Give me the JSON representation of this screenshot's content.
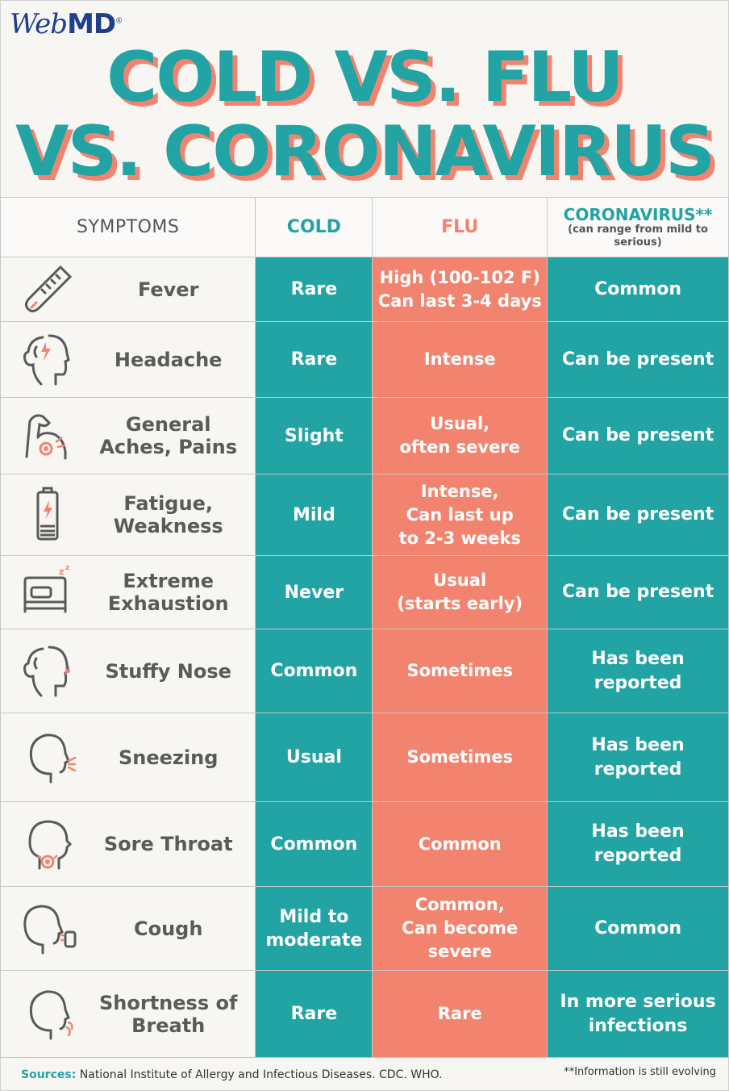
{
  "brand": {
    "logo_web": "Web",
    "logo_md": "MD",
    "logo_reg": "®"
  },
  "title": {
    "line1": "COLD VS. FLU",
    "line2": "VS. CORONAVIRUS"
  },
  "colors": {
    "teal": "#22a3a4",
    "coral": "#f2846f",
    "navy": "#1f3f8a"
  },
  "table": {
    "headers": {
      "symptoms": "SYMPTOMS",
      "cold": "COLD",
      "flu": "FLU",
      "coronavirus": "CORONAVIRUS**",
      "coronavirus_note": "(can range from mild to serious)"
    },
    "rows": [
      {
        "icon": "thermometer-icon",
        "symptom": "Fever",
        "cold": "Rare",
        "flu": "High (100-102 F)\nCan last 3-4 days",
        "coronavirus": "Common"
      },
      {
        "icon": "headache-icon",
        "symptom": "Headache",
        "cold": "Rare",
        "flu": "Intense",
        "coronavirus": "Can be present"
      },
      {
        "icon": "flexed-arm-icon",
        "symptom": "General\nAches, Pains",
        "cold": "Slight",
        "flu": "Usual,\noften severe",
        "coronavirus": "Can be present"
      },
      {
        "icon": "low-battery-icon",
        "symptom": "Fatigue,\nWeakness",
        "cold": "Mild",
        "flu": "Intense,\nCan last up\nto 2-3 weeks",
        "coronavirus": "Can be present"
      },
      {
        "icon": "bed-icon",
        "symptom": "Extreme\nExhaustion",
        "cold": "Never",
        "flu": "Usual\n(starts early)",
        "coronavirus": "Can be present"
      },
      {
        "icon": "stuffy-nose-icon",
        "symptom": "Stuffy Nose",
        "cold": "Common",
        "flu": "Sometimes",
        "coronavirus": "Has been\nreported"
      },
      {
        "icon": "sneezing-icon",
        "symptom": "Sneezing",
        "cold": "Usual",
        "flu": "Sometimes",
        "coronavirus": "Has been\nreported"
      },
      {
        "icon": "sore-throat-icon",
        "symptom": "Sore Throat",
        "cold": "Common",
        "flu": "Common",
        "coronavirus": "Has been\nreported"
      },
      {
        "icon": "cough-icon",
        "symptom": "Cough",
        "cold": "Mild to\nmoderate",
        "flu": "Common,\nCan become\nsevere",
        "coronavirus": "Common"
      },
      {
        "icon": "shortness-of-breath-icon",
        "symptom": "Shortness of\nBreath",
        "cold": "Rare",
        "flu": "Rare",
        "coronavirus": "In more serious\ninfections"
      }
    ]
  },
  "footer": {
    "sources_label": "Sources:",
    "sources_text": " National Institute of Allergy and Infectious Diseases. CDC. WHO.",
    "note": "**Information is still evolving"
  }
}
